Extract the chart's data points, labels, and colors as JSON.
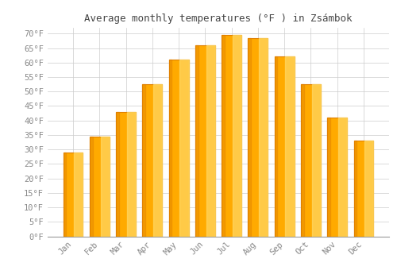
{
  "title": "Average monthly temperatures (°F ) in Zsámbok",
  "months": [
    "Jan",
    "Feb",
    "Mar",
    "Apr",
    "May",
    "Jun",
    "Jul",
    "Aug",
    "Sep",
    "Oct",
    "Nov",
    "Dec"
  ],
  "values": [
    29,
    34.5,
    43,
    52.5,
    61,
    66,
    69.5,
    68.5,
    62,
    52.5,
    41,
    33
  ],
  "bar_color_main": "#FFAA00",
  "bar_color_light": "#FFD966",
  "bar_color_dark": "#E08000",
  "bar_edge_color": "#CC8800",
  "background_color": "#FFFFFF",
  "grid_color": "#CCCCCC",
  "ylim": [
    0,
    72
  ],
  "yticks": [
    0,
    5,
    10,
    15,
    20,
    25,
    30,
    35,
    40,
    45,
    50,
    55,
    60,
    65,
    70
  ],
  "title_fontsize": 9,
  "tick_fontsize": 7.5,
  "tick_color": "#888888",
  "title_color": "#444444"
}
